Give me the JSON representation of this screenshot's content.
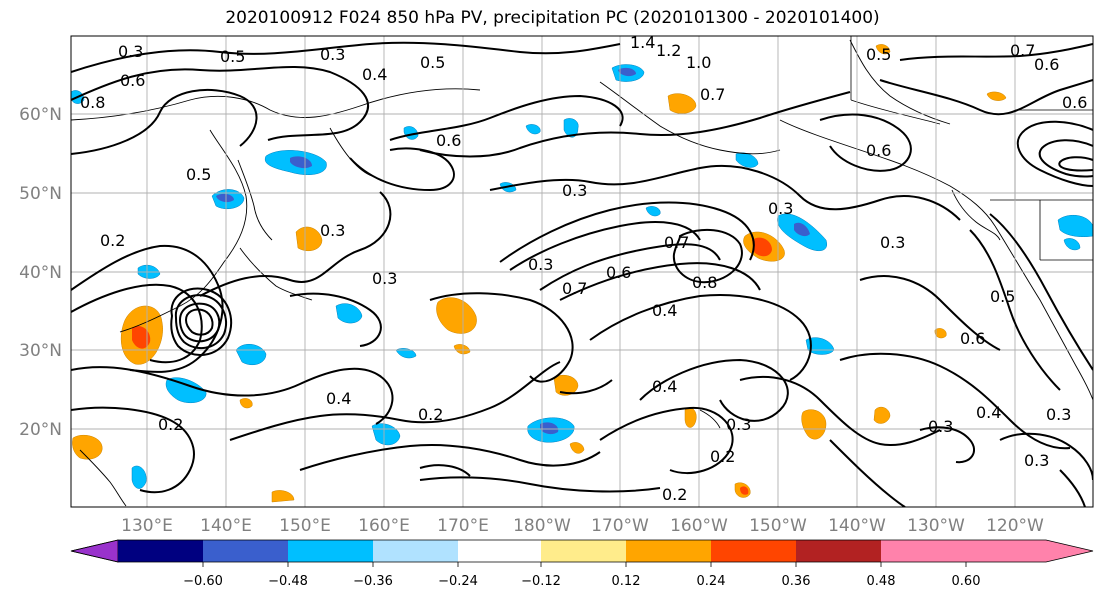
{
  "title": "2020100912 F024 850 hPa PV, precipitation PC (2020101300 - 2020101400)",
  "lat_labels": [
    "60°N",
    "50°N",
    "40°N",
    "30°N",
    "20°N"
  ],
  "lon_labels": [
    "130°E",
    "140°E",
    "150°E",
    "160°E",
    "170°E",
    "180°W",
    "170°W",
    "160°W",
    "150°W",
    "140°W",
    "130°W",
    "120°W"
  ],
  "colorbar": {
    "ticks": [
      "−0.60",
      "−0.48",
      "−0.36",
      "−0.24",
      "−0.12",
      "0.12",
      "0.24",
      "0.36",
      "0.48",
      "0.60"
    ],
    "colors": [
      "#9932cc",
      "#000080",
      "#3a5fcd",
      "#00bfff",
      "#b0e2ff",
      "#ffffff",
      "#ffec8b",
      "#ffa500",
      "#ff4500",
      "#b22222",
      "#ff82ab"
    ]
  },
  "contour_labels": [
    "0.3",
    "0.5",
    "0.3",
    "0.4",
    "0.5",
    "1.4",
    "1.2",
    "1.0",
    "0.7",
    "0.6",
    "0.5",
    "0.6",
    "0.8",
    "0.6",
    "0.6",
    "0.7",
    "0.5",
    "0.3",
    "0.2",
    "0.3",
    "0.3",
    "0.3",
    "0.7",
    "0.6",
    "0.8",
    "0.7",
    "0.3",
    "0.3",
    "0.4",
    "0.6",
    "0.4",
    "0.2",
    "0.4",
    "0.2",
    "0.3",
    "0.2",
    "0.3",
    "0.4",
    "0.3",
    "0.3",
    "0.2",
    "0.6",
    "0.5"
  ]
}
